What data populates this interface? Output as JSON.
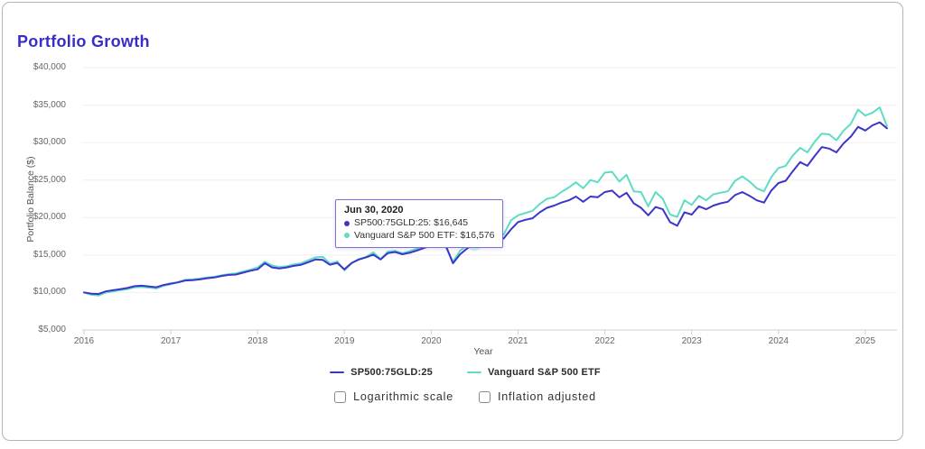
{
  "card": {
    "title": "Portfolio Growth"
  },
  "tooltip": {
    "date": "Jun 30, 2020",
    "rows": [
      {
        "text": "SP500:75GLD:25: $16,645"
      },
      {
        "text": "Vanguard S&P 500 ETF: $16,576"
      }
    ]
  },
  "controls": [
    {
      "label": "Logarithmic scale",
      "checked": false
    },
    {
      "label": "Inflation adjusted",
      "checked": false
    }
  ],
  "chart_data": {
    "type": "line",
    "title": "Portfolio Growth",
    "xlabel": "Year",
    "ylabel": "Portfolio Balance ($)",
    "x_start_year": 2016,
    "x_step_months": 1,
    "xlim": [
      2016,
      2025.4
    ],
    "ylim": [
      5000,
      40000
    ],
    "grid": true,
    "legend_position": "bottom",
    "y_tick_values": [
      5000,
      10000,
      15000,
      20000,
      25000,
      30000,
      35000,
      40000
    ],
    "y_tick_labels": [
      "$5,000",
      "$10,000",
      "$15,000",
      "$20,000",
      "$25,000",
      "$30,000",
      "$35,000",
      "$40,000"
    ],
    "x_tick_values": [
      2016,
      2017,
      2018,
      2019,
      2020,
      2021,
      2022,
      2023,
      2024,
      2025
    ],
    "x_tick_labels": [
      "2016",
      "2017",
      "2018",
      "2019",
      "2020",
      "2021",
      "2022",
      "2023",
      "2024",
      "2025"
    ],
    "highlight": {
      "series_index": 1,
      "point_index": 54,
      "date": "Jun 30, 2020"
    },
    "series": [
      {
        "name": "SP500:75GLD:25",
        "color": "#3d35cb",
        "values": [
          10000,
          9850,
          9800,
          10150,
          10300,
          10450,
          10600,
          10850,
          10900,
          10800,
          10700,
          11000,
          11200,
          11350,
          11600,
          11650,
          11750,
          11900,
          12000,
          12200,
          12350,
          12400,
          12650,
          12900,
          13100,
          13900,
          13350,
          13200,
          13350,
          13550,
          13700,
          14050,
          14400,
          14350,
          13700,
          13950,
          13100,
          13950,
          14400,
          14700,
          15050,
          14400,
          15250,
          15400,
          15100,
          15300,
          15600,
          15950,
          16250,
          16700,
          16300,
          13900,
          15100,
          15900,
          16645,
          17300,
          17900,
          17400,
          17200,
          18400,
          19400,
          19700,
          19900,
          20700,
          21300,
          21600,
          22000,
          22300,
          22800,
          22100,
          22800,
          22700,
          23400,
          23600,
          22700,
          23300,
          21900,
          21300,
          20300,
          21400,
          21100,
          19400,
          18900,
          20700,
          20400,
          21500,
          21100,
          21600,
          21900,
          22100,
          23000,
          23400,
          22900,
          22300,
          22000,
          23600,
          24600,
          24900,
          26200,
          27400,
          26900,
          28200,
          29400,
          29200,
          28700,
          29900,
          30800,
          32100,
          31600,
          32300,
          32700,
          31900
        ]
      },
      {
        "name": "Vanguard S&P 500 ETF",
        "color": "#5edcc5",
        "values": [
          10000,
          9700,
          9600,
          10000,
          10150,
          10300,
          10450,
          10700,
          10750,
          10650,
          10550,
          10900,
          11100,
          11400,
          11700,
          11750,
          11850,
          12000,
          12100,
          12300,
          12450,
          12550,
          12800,
          13050,
          13350,
          14100,
          13600,
          13400,
          13500,
          13750,
          13900,
          14300,
          14700,
          14750,
          13850,
          14150,
          12950,
          13900,
          14450,
          14750,
          15350,
          14450,
          15450,
          15550,
          15250,
          15500,
          15850,
          16250,
          16400,
          16800,
          16100,
          14100,
          15600,
          16300,
          16576,
          17600,
          18900,
          18100,
          17700,
          19600,
          20300,
          20600,
          20900,
          21800,
          22500,
          22700,
          23400,
          24000,
          24700,
          23900,
          25000,
          24700,
          26000,
          26100,
          24800,
          25700,
          23500,
          23400,
          21500,
          23400,
          22500,
          20400,
          20100,
          22300,
          21700,
          22900,
          22300,
          23100,
          23300,
          23500,
          24900,
          25500,
          24800,
          23900,
          23500,
          25400,
          26600,
          26900,
          28300,
          29300,
          28700,
          30100,
          31200,
          31100,
          30300,
          31600,
          32500,
          34400,
          33600,
          34000,
          34700,
          32200
        ]
      }
    ]
  }
}
